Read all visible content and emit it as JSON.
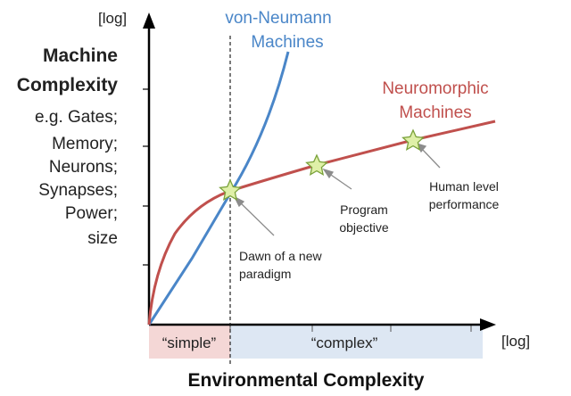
{
  "y_axis": {
    "title_lines": [
      "Machine",
      "Complexity"
    ],
    "detail_lines": [
      "e.g. Gates;",
      "Memory;",
      "Neurons;",
      "Synapses;",
      "Power;",
      "size"
    ],
    "scale_label": "[log]"
  },
  "x_axis": {
    "title": "Environmental Complexity",
    "scale_label": "[log]",
    "regions": [
      {
        "label": "“simple”",
        "color": "#f4d7d6"
      },
      {
        "label": "“complex”",
        "color": "#dde7f3"
      }
    ]
  },
  "curves": {
    "von_neumann": {
      "label_lines": [
        "von-Neumann",
        "Machines"
      ],
      "color": "#4a86c8"
    },
    "neuromorphic": {
      "label_lines": [
        "Neuromorphic",
        "Machines"
      ],
      "color": "#c0504d"
    }
  },
  "milestones": [
    {
      "label_lines": [
        "Dawn of a new",
        "paradigm"
      ]
    },
    {
      "label_lines": [
        "Program",
        "objective"
      ]
    },
    {
      "label_lines": [
        "Human level",
        "performance"
      ]
    }
  ],
  "colors": {
    "axis": "#000000",
    "star_fill": "#dff0a8",
    "star_stroke": "#7aa23a",
    "arrow": "#8c8c8c"
  }
}
